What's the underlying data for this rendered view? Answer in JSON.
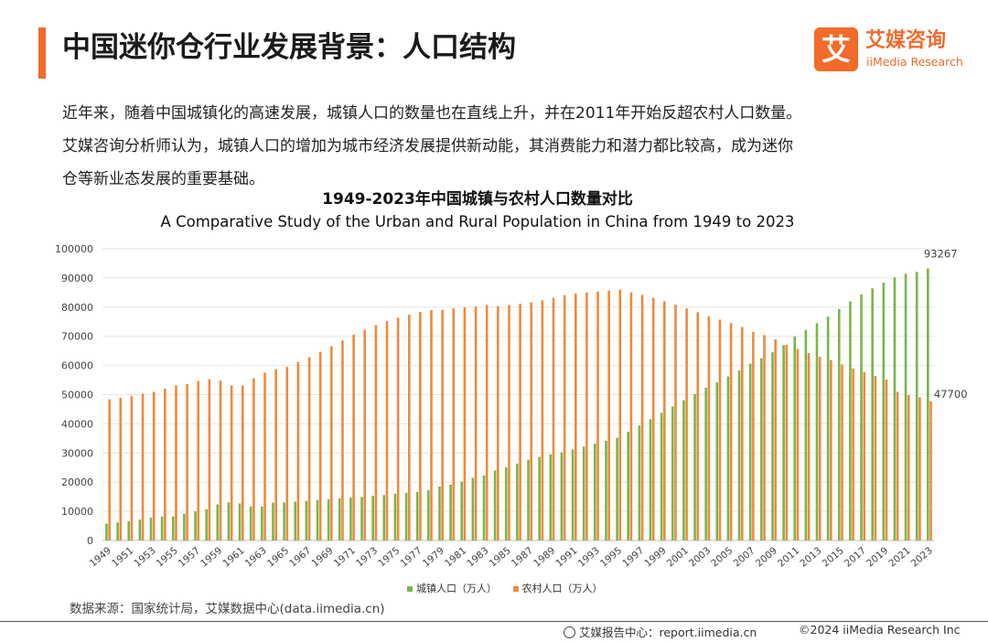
{
  "header": {
    "title": "中国迷你仓行业发展背景：人口结构",
    "logo_mark": "艾",
    "logo_cn": "艾媒咨询",
    "logo_en": "iiMedia Research"
  },
  "intro": {
    "line1": "近年来，随着中国城镇化的高速发展，城镇人口的数量也在直线上升，并在2011年开始反超农村人口数量。",
    "line2": "艾媒咨询分析师认为，城镇人口的增加为城市经济发展提供新动能，其消费能力和潜力都比较高，成为迷你",
    "line3": "仓等新业态发展的重要基础。"
  },
  "colors": {
    "accent": "#F26B2A",
    "urban": "#7AB648",
    "rural": "#EE8A3C",
    "grid": "#E6E6E6"
  },
  "chart_data": {
    "type": "bar",
    "title": "1949-2023年中国城镇与农村人口数量对比",
    "subtitle": "A Comparative Study of the Urban and Rural Population in China from 1949 to 2023",
    "xlabel": "",
    "ylabel": "",
    "ylim": [
      0,
      100000
    ],
    "yticks": [
      0,
      10000,
      20000,
      30000,
      40000,
      50000,
      60000,
      70000,
      80000,
      90000,
      100000
    ],
    "categories": [
      1949,
      1950,
      1951,
      1952,
      1953,
      1954,
      1955,
      1956,
      1957,
      1958,
      1959,
      1960,
      1961,
      1962,
      1963,
      1964,
      1965,
      1966,
      1967,
      1968,
      1969,
      1970,
      1971,
      1972,
      1973,
      1974,
      1975,
      1976,
      1977,
      1978,
      1979,
      1980,
      1981,
      1982,
      1983,
      1984,
      1985,
      1986,
      1987,
      1988,
      1989,
      1990,
      1991,
      1992,
      1993,
      1994,
      1995,
      1996,
      1997,
      1998,
      1999,
      2000,
      2001,
      2002,
      2003,
      2004,
      2005,
      2006,
      2007,
      2008,
      2009,
      2010,
      2011,
      2012,
      2013,
      2014,
      2015,
      2016,
      2017,
      2018,
      2019,
      2020,
      2021,
      2022,
      2023
    ],
    "xtick_labels": [
      "1949",
      "1951",
      "1953",
      "1955",
      "1957",
      "1959",
      "1961",
      "1963",
      "1965",
      "1967",
      "1969",
      "1971",
      "1973",
      "1975",
      "1977",
      "1979",
      "1981",
      "1983",
      "1985",
      "1987",
      "1989",
      "1991",
      "1993",
      "1995",
      "1997",
      "1999",
      "2001",
      "2003",
      "2005",
      "2007",
      "2009",
      "2011",
      "2013",
      "2015",
      "2017",
      "2019",
      "2021",
      "2023"
    ],
    "series": [
      {
        "name": "城镇人口（万人）",
        "values": [
          5765,
          6169,
          6632,
          7163,
          7826,
          8249,
          8285,
          9185,
          9949,
          10721,
          12371,
          13073,
          12707,
          11659,
          11646,
          12950,
          13045,
          13313,
          13548,
          13838,
          14117,
          14424,
          14711,
          14935,
          15345,
          15595,
          16030,
          16341,
          16669,
          17245,
          18495,
          19140,
          20171,
          21480,
          22274,
          24017,
          25094,
          26366,
          27674,
          28661,
          29540,
          30195,
          31203,
          32175,
          33173,
          34169,
          35174,
          37304,
          39449,
          41608,
          43748,
          45906,
          48064,
          50212,
          52376,
          54283,
          56212,
          58288,
          60633,
          62403,
          64512,
          66978,
          69927,
          72175,
          74502,
          76738,
          79302,
          81924,
          84343,
          86433,
          88426,
          90220,
          91425,
          92071,
          93267
        ]
      },
      {
        "name": "农村人口（万人）",
        "values": [
          48402,
          48934,
          49491,
          50319,
          50970,
          52016,
          53180,
          53643,
          54704,
          55273,
          54836,
          53134,
          53152,
          55636,
          57526,
          58705,
          59493,
          61229,
          62820,
          64696,
          66554,
          68568,
          70518,
          72242,
          73866,
          75264,
          76390,
          77376,
          78305,
          79014,
          79047,
          79565,
          79901,
          80174,
          80734,
          80340,
          80757,
          81141,
          81626,
          82365,
          83164,
          84138,
          84620,
          84996,
          85344,
          85681,
          85947,
          85085,
          84177,
          83153,
          82038,
          80837,
          79563,
          78241,
          76851,
          75705,
          74544,
          73160,
          71496,
          70399,
          68938,
          67113,
          65656,
          64222,
          62961,
          61866,
          60346,
          58973,
          57661,
          56401,
          55162,
          50992,
          49835,
          49104,
          47700
        ]
      }
    ],
    "annotations": [
      {
        "year": 2023,
        "series": 0,
        "label": "93267"
      },
      {
        "year": 2023,
        "series": 1,
        "label": "47700"
      }
    ],
    "legend_position": "bottom-center",
    "grid": true
  },
  "source": "数据来源：国家统计局，艾媒数据中心(data.iimedia.cn)",
  "footer": {
    "report": "艾媒报告中心：report.iimedia.cn",
    "copyright": "©2024  iiMedia Research  Inc"
  }
}
